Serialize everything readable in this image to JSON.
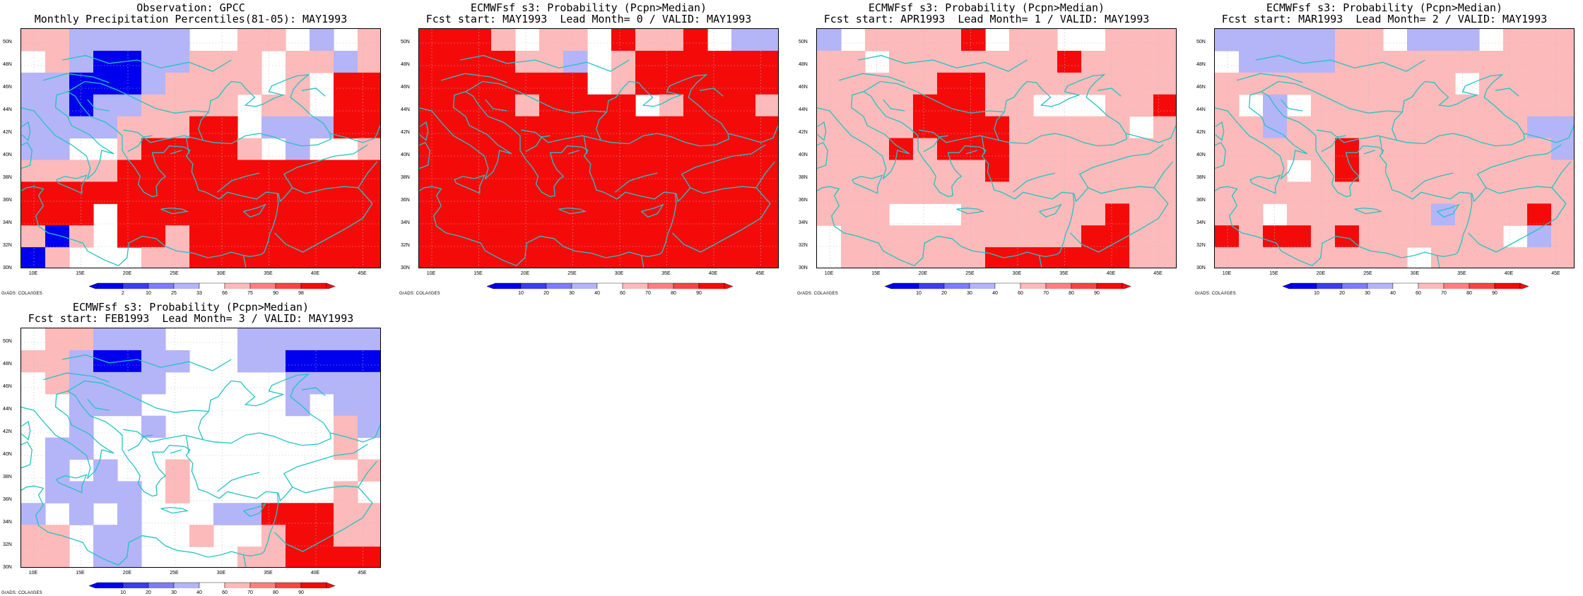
{
  "lat_labels": [
    "50N",
    "48N",
    "46N",
    "44N",
    "42N",
    "40N",
    "38N",
    "36N",
    "34N",
    "32N",
    "30N"
  ],
  "lon_labels": [
    "10E",
    "15E",
    "20E",
    "25E",
    "30E",
    "35E",
    "40E",
    "45E"
  ],
  "credit": "GrADS: COLA/IGES",
  "colors": {
    "coast": "#22c4c4",
    "grid": "#bdbdbd",
    "blue_scale": [
      "#0000ee",
      "#3c3cf0",
      "#7c7cf4",
      "#b4b4f8"
    ],
    "red_scale": [
      "#fdbaba",
      "#fb8080",
      "#f84444",
      "#f50a0a"
    ]
  },
  "panels": [
    {
      "name": "obs",
      "title_line1": "Observation: GPCC",
      "title_line2": "Monthly Precipitation Percentiles(81-05): MAY1993",
      "colorbar_labels": [
        "2",
        "10",
        "25",
        "33",
        "66",
        "75",
        "90",
        "98"
      ],
      "grid": [
        "rrbbbbb..rr.b.r",
        ".rbBBbbrrr.rrbr",
        "bbBBBbrrrr.r.RR",
        "bbBbbrrrr.rr.RR",
        "bbbbrrrRR.bbbRR",
        "bb..rRRRRr.b..r",
        "rrrrRRRRRRRRRRR",
        "RRRRRRRRRRRRRRR",
        "RRR.RRRRRRRRRRR",
        "rBr.RRrRRRRRRRR",
        "Br...rrRRRRRRRR"
      ]
    },
    {
      "name": "lead0",
      "title_line1": "ECMWFsf s3: Probability (Pcpn>Median)",
      "title_line2": "Fcst start: MAY1993  Lead Month= 0 / VALID: MAY1993",
      "colorbar_labels": [
        "10",
        "20",
        "30",
        "40",
        "60",
        "70",
        "80",
        "90"
      ],
      "grid": [
        "RRRr.rr.RrrR.bb",
        "RRRRrrb.rRRRRRR",
        "RRRRRRR.rRRRRRR",
        "RRRRrRRRR.rRRRr",
        "RRRRRRRRRRRRRRR",
        "RRRRRRRRRRRRRRR",
        "RRRRRRRRRRRRRRR",
        "RRRRRRRRRRRRRRR",
        "RRRRRRRRRRRRRRR",
        "RRRRRRRRRRRRRRR",
        "RRRRRRRRRRRRRRR"
      ]
    },
    {
      "name": "lead1",
      "title_line1": "ECMWFsf s3: Probability (Pcpn>Median)",
      "title_line2": "Fcst start: APR1993  Lead Month= 1 / VALID: MAY1993",
      "colorbar_labels": [
        "10",
        "20",
        "30",
        "40",
        "60",
        "70",
        "80",
        "90"
      ],
      "grid": [
        "b.rrrrR.rr..rrr",
        "rr.rrrrrrrRrrrr",
        "rrrrrRRrrrrrrrr",
        "rrrrRRRrr...rrR",
        "rrrrRRRRrrrrr.r",
        "rrrRrRRRrrrrrrr",
        "rrrrrrrRrrrrrrr",
        "rrrrrrrrrrrrrrr",
        "rrr...rrrrrrRrr",
        ".rrrrrrrrrrRRrr",
        ".rrrrrrRRRRRRrr"
      ]
    },
    {
      "name": "lead2",
      "title_line1": "ECMWFsf s3: Probability (Pcpn>Median)",
      "title_line2": "Fcst start: MAR1993  Lead Month= 2 / VALID: MAY1993",
      "colorbar_labels": [
        "10",
        "20",
        "30",
        "40",
        "60",
        "70",
        "80",
        "90"
      ],
      "grid": [
        "bbbbbrr.bbb.rrr",
        ".bbbbrrrrrrrrrr",
        "rrrrrrrrrr.rrrr",
        "r.b.rrrrrrrrrrr",
        "rrbrrrrrrrrrrbb",
        "rrrrrRrrrrrrrrb",
        "rrr.rRrrrrrrrrr",
        "rrrrrrrrrrrrrrr",
        "rr.rrrrrrbrrrRr",
        "RrRRrRrrrrrr.br",
        "rrrrrrrr.rrrrrr"
      ]
    },
    {
      "name": "lead3",
      "title_line1": "ECMWFsf s3: Probability (Pcpn>Median)",
      "title_line2": "Fcst start: FEB1993  Lead Month= 3 / VALID: MAY1993",
      "colorbar_labels": [
        "10",
        "20",
        "30",
        "40",
        "60",
        "70",
        "80",
        "90"
      ],
      "grid": [
        ".rrbbb...bbbbbb",
        "rrbBBbb..bbBBBB",
        ".rbbbb.....bbbb",
        "..bbb......b.bb",
        "..b..b.......rb",
        ".bb..........r.",
        ".b.b..r.......r",
        ".bbbb.r......r.",
        "b.b.b...bbRRRrr",
        "rr.bb..r..rRRrr",
        "rr.bb....rrRRRR"
      ]
    }
  ]
}
